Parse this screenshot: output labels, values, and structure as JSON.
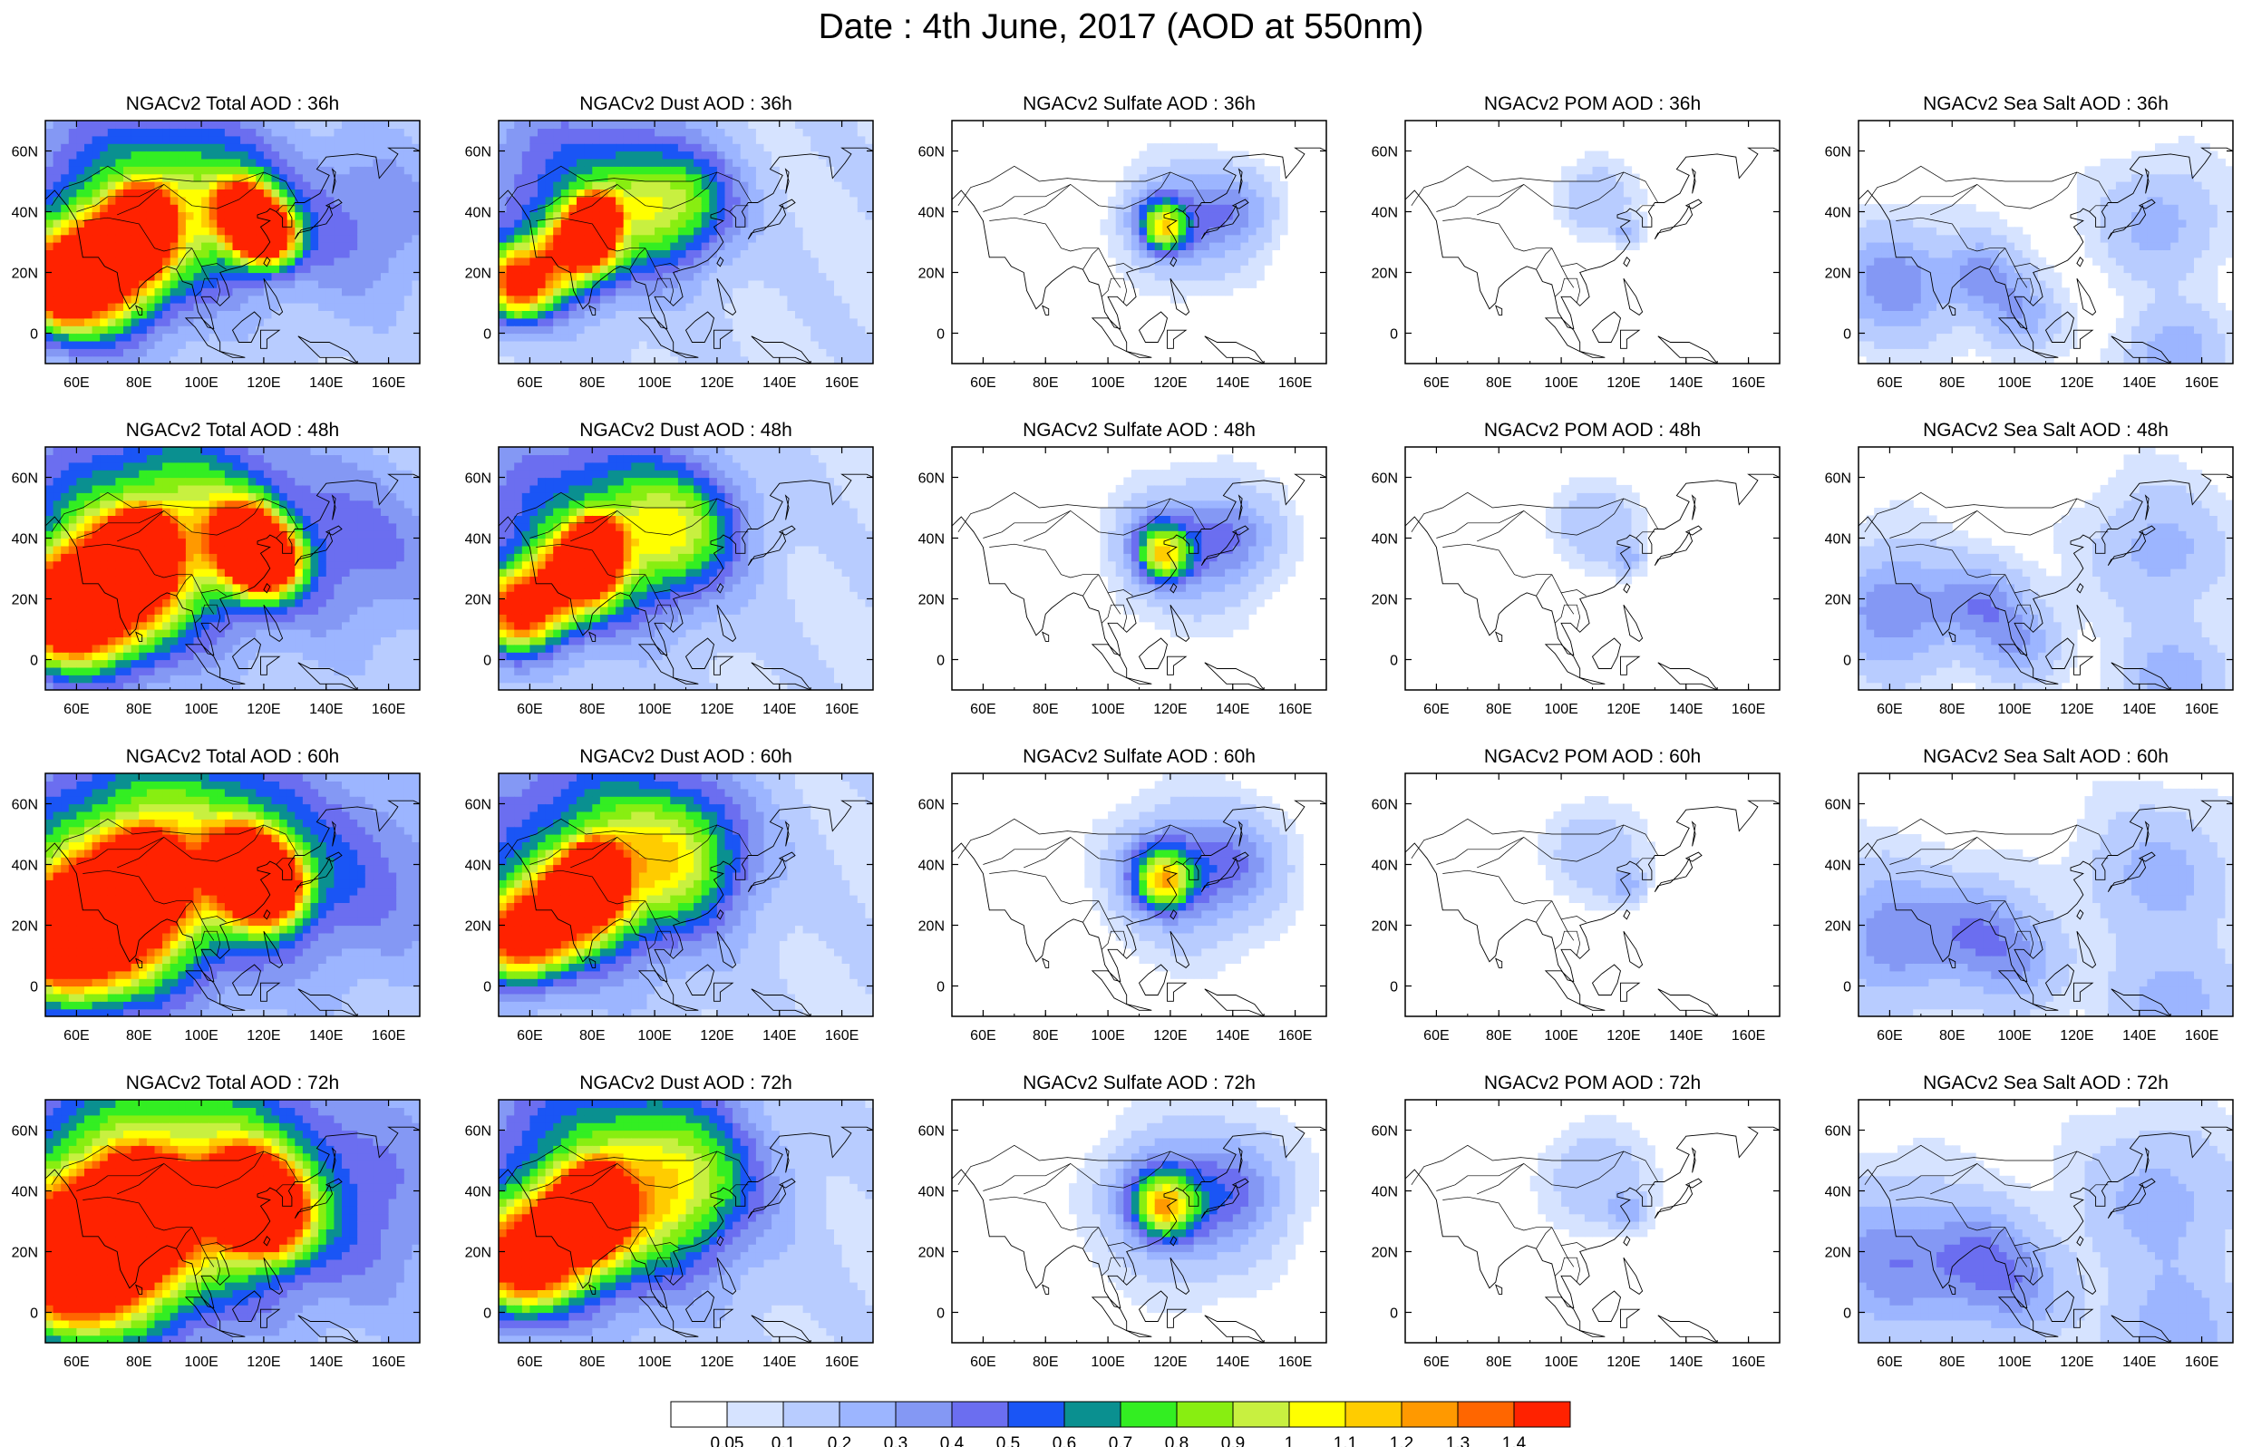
{
  "figure": {
    "title": "Date : 4th June, 2017 (AOD at 550nm)"
  },
  "grid": {
    "columns": [
      "Total",
      "Dust",
      "Sulfate",
      "POM",
      "Sea Salt"
    ],
    "rows": [
      "36h",
      "48h",
      "60h",
      "72h"
    ],
    "panel_titles": [
      [
        "NGACv2 Total AOD : 36h",
        "NGACv2 Dust AOD : 36h",
        "NGACv2 Sulfate AOD : 36h",
        "NGACv2 POM AOD : 36h",
        "NGACv2 Sea Salt AOD : 36h"
      ],
      [
        "NGACv2 Total AOD : 48h",
        "NGACv2 Dust AOD : 48h",
        "NGACv2 Sulfate AOD : 48h",
        "NGACv2 POM AOD : 48h",
        "NGACv2 Sea Salt AOD : 48h"
      ],
      [
        "NGACv2 Total AOD : 60h",
        "NGACv2 Dust AOD : 60h",
        "NGACv2 Sulfate AOD : 60h",
        "NGACv2 POM AOD : 60h",
        "NGACv2 Sea Salt AOD : 60h"
      ],
      [
        "NGACv2 Total AOD : 72h",
        "NGACv2 Dust AOD : 72h",
        "NGACv2 Sulfate AOD : 72h",
        "NGACv2 POM AOD : 72h",
        "NGACv2 Sea Salt  AOD : 72h"
      ]
    ]
  },
  "map_axes": {
    "lon_range": [
      50,
      170
    ],
    "lat_range": [
      -10,
      70
    ],
    "lon_ticks": [
      60,
      80,
      100,
      120,
      140,
      160
    ],
    "lon_tick_labels": [
      "60E",
      "80E",
      "100E",
      "120E",
      "140E",
      "160E"
    ],
    "lat_ticks": [
      0,
      20,
      40,
      60
    ],
    "lat_tick_labels": [
      "0",
      "20N",
      "40N",
      "60N"
    ]
  },
  "colorbar": {
    "labels": [
      "0.05",
      "0.1",
      "0.2",
      "0.3",
      "0.4",
      "0.5",
      "0.6",
      "0.7",
      "0.8",
      "0.9",
      "1",
      "1.1",
      "1.2",
      "1.3",
      "1.4"
    ],
    "colors": [
      "#ffffff",
      "#d6e3ff",
      "#b8ccff",
      "#9cb5ff",
      "#8498f4",
      "#6b6ef0",
      "#1a55f5",
      "#0a9090",
      "#33ee22",
      "#88ee11",
      "#c8f040",
      "#ffff00",
      "#ffcc00",
      "#ff9900",
      "#ff6600",
      "#ff2200"
    ]
  }
}
